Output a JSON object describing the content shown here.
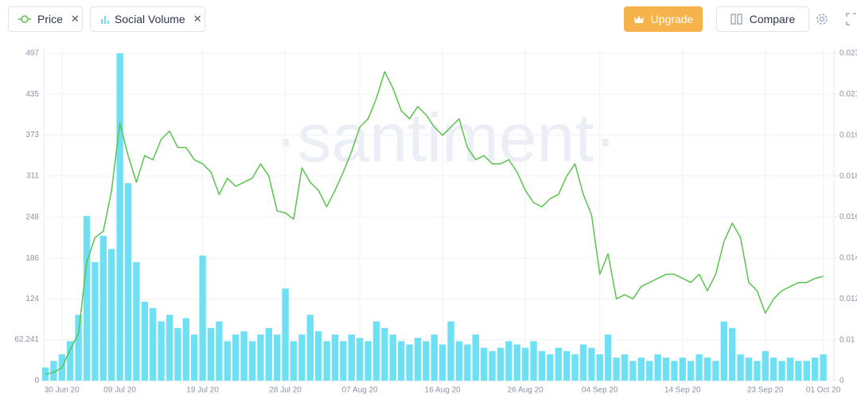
{
  "toolbar": {
    "upgrade": "Upgrade",
    "compare": "Compare"
  },
  "chart_data": {
    "type": "combo",
    "watermark": "·santiment·",
    "categories": [
      null,
      null,
      "30 Jun 20",
      null,
      null,
      null,
      null,
      null,
      null,
      "09 Jul 20",
      null,
      null,
      null,
      null,
      null,
      null,
      null,
      null,
      null,
      "19 Jul 20",
      null,
      null,
      null,
      null,
      null,
      null,
      null,
      null,
      null,
      "28 Jul 20",
      null,
      null,
      null,
      null,
      null,
      null,
      null,
      null,
      "07 Aug 20",
      null,
      null,
      null,
      null,
      null,
      null,
      null,
      null,
      null,
      "16 Aug 20",
      null,
      null,
      null,
      null,
      null,
      null,
      null,
      null,
      null,
      "26 Aug 20",
      null,
      null,
      null,
      null,
      null,
      null,
      null,
      null,
      "04 Sep 20",
      null,
      null,
      null,
      null,
      null,
      null,
      null,
      null,
      null,
      "14 Sep 20",
      null,
      null,
      null,
      null,
      null,
      null,
      null,
      null,
      null,
      "23 Sep 20",
      null,
      null,
      null,
      null,
      null,
      null,
      "01 Oct 20"
    ],
    "series": [
      {
        "name": "Price",
        "type": "line",
        "axis": "y2",
        "color": "#5bc34f",
        "values": [
          0.0016,
          0.002,
          0.0032,
          0.0076,
          0.0103,
          0.0138,
          0.015,
          0.0153,
          0.0173,
          0.0196,
          0.0185,
          0.0177,
          0.0185,
          0.0184,
          0.0189,
          0.0192,
          0.0187,
          0.0187,
          0.0184,
          0.0183,
          0.0181,
          0.0171,
          0.0179,
          0.0175,
          0.0177,
          0.0179,
          0.0183,
          0.018,
          0.0163,
          0.0162,
          0.0159,
          0.0182,
          0.0177,
          0.0173,
          0.0165,
          0.0173,
          0.0181,
          0.0186,
          0.0194,
          0.0198,
          0.0208,
          0.0221,
          0.0213,
          0.0202,
          0.0198,
          0.0204,
          0.02,
          0.0194,
          0.019,
          0.0194,
          0.0198,
          0.0187,
          0.0184,
          0.0185,
          0.0183,
          0.0183,
          0.0184,
          0.0181,
          0.0173,
          0.0167,
          0.0165,
          0.0169,
          0.0171,
          0.018,
          0.0183,
          0.0171,
          0.0161,
          0.0132,
          0.0142,
          0.012,
          0.0122,
          0.012,
          0.0126,
          0.0128,
          0.013,
          0.0132,
          0.0132,
          0.013,
          0.0128,
          0.0132,
          0.0124,
          0.0132,
          0.0148,
          0.0157,
          0.015,
          0.0128,
          0.0124,
          0.0113,
          0.012,
          0.0124,
          0.0126,
          0.0128,
          0.0128,
          0.013,
          0.0131
        ]
      },
      {
        "name": "Social Volume",
        "type": "bar",
        "axis": "y",
        "color": "#6ee0f3",
        "values": [
          20,
          30,
          40,
          60,
          100,
          250,
          180,
          220,
          200,
          497,
          300,
          180,
          120,
          110,
          90,
          100,
          80,
          95,
          70,
          190,
          80,
          90,
          60,
          70,
          75,
          60,
          70,
          80,
          70,
          140,
          60,
          70,
          100,
          75,
          60,
          70,
          60,
          70,
          65,
          60,
          90,
          80,
          70,
          60,
          55,
          65,
          60,
          70,
          55,
          90,
          60,
          55,
          70,
          50,
          45,
          50,
          60,
          55,
          50,
          60,
          45,
          40,
          50,
          45,
          40,
          55,
          50,
          40,
          70,
          35,
          40,
          30,
          35,
          30,
          40,
          35,
          30,
          35,
          30,
          40,
          35,
          30,
          90,
          80,
          40,
          35,
          30,
          45,
          35,
          30,
          35,
          30,
          30,
          35,
          40
        ]
      }
    ],
    "ylim": [
      0,
      497
    ],
    "yticks": [
      0,
      62.241,
      124,
      186,
      248,
      311,
      373,
      435,
      497
    ],
    "y2lim": [
      0,
      0.023
    ],
    "y2ticks": [
      0,
      0.01,
      0.012,
      0.014,
      0.016,
      0.018,
      0.019,
      0.021,
      0.023
    ],
    "grid": true
  }
}
